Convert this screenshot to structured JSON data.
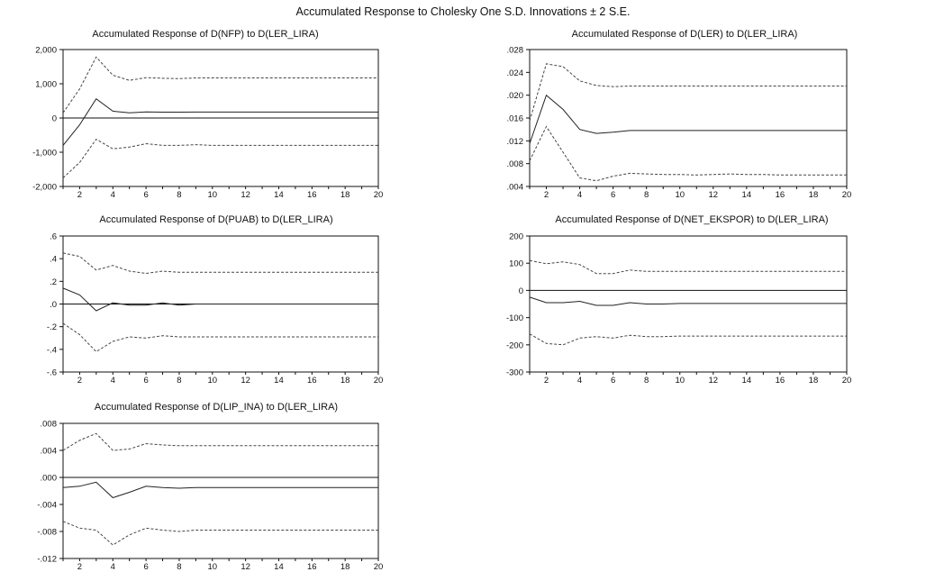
{
  "title": "Accumulated Response to Cholesky One S.D. Innovations ± 2 S.E.",
  "chart_data": [
    {
      "type": "line",
      "title": "Accumulated Response of D(NFP) to D(LER_LIRA)",
      "x": [
        1,
        2,
        3,
        4,
        5,
        6,
        7,
        8,
        9,
        10,
        11,
        12,
        13,
        14,
        15,
        16,
        17,
        18,
        19,
        20
      ],
      "xticks": [
        2,
        4,
        6,
        8,
        10,
        12,
        14,
        16,
        18,
        20
      ],
      "ylim": [
        -2000,
        2000
      ],
      "yticks": [
        -2000,
        -1000,
        0,
        1000,
        2000
      ],
      "ytick_labels": [
        "-2,000",
        "-1,000",
        "0",
        "1,000",
        "2,000"
      ],
      "zero_line": true,
      "series": [
        {
          "role": "response",
          "values": [
            -800,
            -200,
            560,
            200,
            150,
            180,
            170,
            170,
            175,
            175,
            175,
            175,
            175,
            175,
            175,
            175,
            175,
            175,
            175,
            175
          ]
        },
        {
          "role": "upper",
          "values": [
            150,
            850,
            1780,
            1250,
            1100,
            1180,
            1160,
            1150,
            1170,
            1170,
            1170,
            1170,
            1170,
            1170,
            1170,
            1170,
            1170,
            1170,
            1170,
            1170
          ]
        },
        {
          "role": "lower",
          "values": [
            -1750,
            -1300,
            -620,
            -900,
            -850,
            -750,
            -800,
            -800,
            -780,
            -800,
            -800,
            -800,
            -800,
            -800,
            -800,
            -800,
            -800,
            -800,
            -800,
            -800
          ]
        }
      ]
    },
    {
      "type": "line",
      "title": "Accumulated Response of D(LER) to D(LER_LIRA)",
      "x": [
        1,
        2,
        3,
        4,
        5,
        6,
        7,
        8,
        9,
        10,
        11,
        12,
        13,
        14,
        15,
        16,
        17,
        18,
        19,
        20
      ],
      "xticks": [
        2,
        4,
        6,
        8,
        10,
        12,
        14,
        16,
        18,
        20
      ],
      "ylim": [
        0.004,
        0.028
      ],
      "yticks": [
        0.004,
        0.008,
        0.012,
        0.016,
        0.02,
        0.024,
        0.028
      ],
      "ytick_labels": [
        ".004",
        ".008",
        ".012",
        ".016",
        ".020",
        ".024",
        ".028"
      ],
      "zero_line": false,
      "series": [
        {
          "role": "response",
          "values": [
            0.0115,
            0.02,
            0.0175,
            0.014,
            0.0133,
            0.0135,
            0.0138,
            0.0138,
            0.0138,
            0.0138,
            0.0138,
            0.0138,
            0.0138,
            0.0138,
            0.0138,
            0.0138,
            0.0138,
            0.0138,
            0.0138,
            0.0138
          ]
        },
        {
          "role": "upper",
          "values": [
            0.0155,
            0.0255,
            0.025,
            0.0225,
            0.0217,
            0.0215,
            0.0216,
            0.0216,
            0.0216,
            0.0216,
            0.0216,
            0.0216,
            0.0216,
            0.0216,
            0.0216,
            0.0216,
            0.0216,
            0.0216,
            0.0216,
            0.0216
          ]
        },
        {
          "role": "lower",
          "values": [
            0.0085,
            0.0145,
            0.01,
            0.0055,
            0.005,
            0.0058,
            0.0063,
            0.0062,
            0.0061,
            0.0061,
            0.006,
            0.0061,
            0.0062,
            0.0061,
            0.0061,
            0.006,
            0.006,
            0.006,
            0.006,
            0.006
          ]
        }
      ]
    },
    {
      "type": "line",
      "title": "Accumulated Response of D(PUAB) to D(LER_LIRA)",
      "x": [
        1,
        2,
        3,
        4,
        5,
        6,
        7,
        8,
        9,
        10,
        11,
        12,
        13,
        14,
        15,
        16,
        17,
        18,
        19,
        20
      ],
      "xticks": [
        2,
        4,
        6,
        8,
        10,
        12,
        14,
        16,
        18,
        20
      ],
      "ylim": [
        -0.6,
        0.6
      ],
      "yticks": [
        -0.6,
        -0.4,
        -0.2,
        0.0,
        0.2,
        0.4,
        0.6
      ],
      "ytick_labels": [
        "-.6",
        "-.4",
        "-.2",
        ".0",
        ".2",
        ".4",
        ".6"
      ],
      "zero_line": true,
      "series": [
        {
          "role": "response",
          "values": [
            0.14,
            0.08,
            -0.06,
            0.01,
            -0.01,
            -0.01,
            0.01,
            -0.01,
            0.0,
            0.0,
            0.0,
            0.0,
            0.0,
            0.0,
            0.0,
            0.0,
            0.0,
            0.0,
            0.0,
            0.0
          ]
        },
        {
          "role": "upper",
          "values": [
            0.45,
            0.42,
            0.3,
            0.34,
            0.29,
            0.27,
            0.29,
            0.28,
            0.28,
            0.28,
            0.28,
            0.28,
            0.28,
            0.28,
            0.28,
            0.28,
            0.28,
            0.28,
            0.28,
            0.28
          ]
        },
        {
          "role": "lower",
          "values": [
            -0.17,
            -0.27,
            -0.42,
            -0.33,
            -0.29,
            -0.3,
            -0.28,
            -0.29,
            -0.29,
            -0.29,
            -0.29,
            -0.29,
            -0.29,
            -0.29,
            -0.29,
            -0.29,
            -0.29,
            -0.29,
            -0.29,
            -0.29
          ]
        }
      ]
    },
    {
      "type": "line",
      "title": "Accumulated Response of D(NET_EKSPOR) to D(LER_LIRA)",
      "x": [
        1,
        2,
        3,
        4,
        5,
        6,
        7,
        8,
        9,
        10,
        11,
        12,
        13,
        14,
        15,
        16,
        17,
        18,
        19,
        20
      ],
      "xticks": [
        2,
        4,
        6,
        8,
        10,
        12,
        14,
        16,
        18,
        20
      ],
      "ylim": [
        -300,
        200
      ],
      "yticks": [
        -300,
        -200,
        -100,
        0,
        100,
        200
      ],
      "ytick_labels": [
        "-300",
        "-200",
        "-100",
        "0",
        "100",
        "200"
      ],
      "zero_line": true,
      "series": [
        {
          "role": "response",
          "values": [
            -25,
            -45,
            -45,
            -40,
            -55,
            -55,
            -45,
            -50,
            -50,
            -48,
            -48,
            -48,
            -48,
            -48,
            -48,
            -48,
            -48,
            -48,
            -48,
            -48
          ]
        },
        {
          "role": "upper",
          "values": [
            110,
            98,
            105,
            95,
            62,
            62,
            75,
            70,
            70,
            70,
            70,
            70,
            70,
            70,
            70,
            70,
            70,
            70,
            70,
            70
          ]
        },
        {
          "role": "lower",
          "values": [
            -160,
            -195,
            -200,
            -175,
            -170,
            -175,
            -165,
            -170,
            -170,
            -168,
            -168,
            -168,
            -168,
            -168,
            -168,
            -168,
            -168,
            -168,
            -168,
            -168
          ]
        }
      ]
    },
    {
      "type": "line",
      "title": "Accumulated Response of D(LIP_INA) to D(LER_LIRA)",
      "x": [
        1,
        2,
        3,
        4,
        5,
        6,
        7,
        8,
        9,
        10,
        11,
        12,
        13,
        14,
        15,
        16,
        17,
        18,
        19,
        20
      ],
      "xticks": [
        2,
        4,
        6,
        8,
        10,
        12,
        14,
        16,
        18,
        20
      ],
      "ylim": [
        -0.012,
        0.008
      ],
      "yticks": [
        -0.012,
        -0.008,
        -0.004,
        0.0,
        0.004,
        0.008
      ],
      "ytick_labels": [
        "-.012",
        "-.008",
        "-.004",
        ".000",
        ".004",
        ".008"
      ],
      "zero_line": true,
      "series": [
        {
          "role": "response",
          "values": [
            -0.0015,
            -0.0013,
            -0.0007,
            -0.003,
            -0.0022,
            -0.0013,
            -0.0015,
            -0.0016,
            -0.0015,
            -0.0015,
            -0.0015,
            -0.0015,
            -0.0015,
            -0.0015,
            -0.0015,
            -0.0015,
            -0.0015,
            -0.0015,
            -0.0015,
            -0.0015
          ]
        },
        {
          "role": "upper",
          "values": [
            0.004,
            0.0055,
            0.0065,
            0.004,
            0.0042,
            0.005,
            0.0048,
            0.0047,
            0.0047,
            0.0047,
            0.0047,
            0.0047,
            0.0047,
            0.0047,
            0.0047,
            0.0047,
            0.0047,
            0.0047,
            0.0047,
            0.0047
          ]
        },
        {
          "role": "lower",
          "values": [
            -0.0065,
            -0.0075,
            -0.0078,
            -0.01,
            -0.0085,
            -0.0075,
            -0.0078,
            -0.008,
            -0.0078,
            -0.0078,
            -0.0078,
            -0.0078,
            -0.0078,
            -0.0078,
            -0.0078,
            -0.0078,
            -0.0078,
            -0.0078,
            -0.0078,
            -0.0078
          ]
        }
      ]
    }
  ]
}
